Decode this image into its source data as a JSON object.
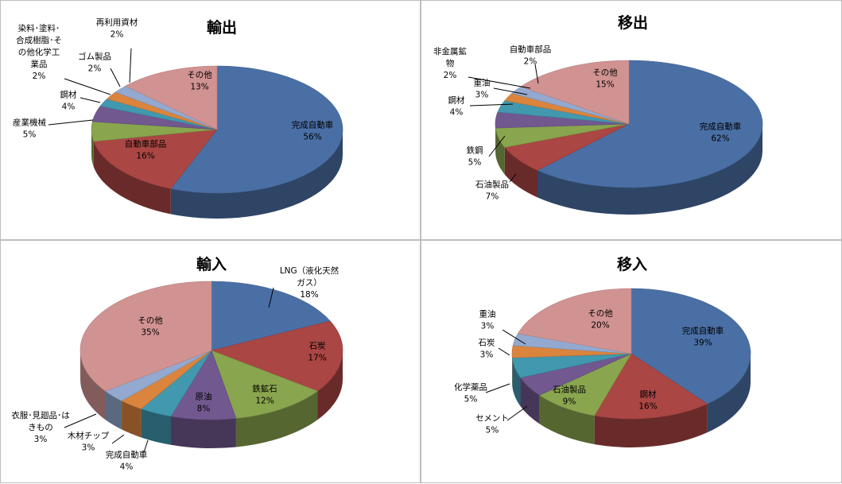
{
  "charts": [
    {
      "type": "pie",
      "title": "輸出",
      "slices": [
        {
          "label": "完成自動車",
          "value": 56,
          "pct": "56%",
          "color": "#4a6fa5"
        },
        {
          "label": "自動車部品",
          "value": 16,
          "pct": "16%",
          "color": "#aa4644"
        },
        {
          "label": "産業機械",
          "value": 5,
          "pct": "5%",
          "color": "#89a54e"
        },
        {
          "label": "鋼材",
          "value": 4,
          "pct": "4%",
          "color": "#71588f"
        },
        {
          "label": "染料･塗料･合成樹脂･その他化学工業品",
          "value": 2,
          "pct": "2%",
          "color": "#4198af"
        },
        {
          "label": "ゴム製品",
          "value": 2,
          "pct": "2%",
          "color": "#db843d"
        },
        {
          "label": "再利用資材",
          "value": 2,
          "pct": "2%",
          "color": "#93a9cf"
        },
        {
          "label": "その他",
          "value": 13,
          "pct": "13%",
          "color": "#d19392"
        }
      ]
    },
    {
      "type": "pie",
      "title": "移出",
      "slices": [
        {
          "label": "完成自動車",
          "value": 62,
          "pct": "62%",
          "color": "#4a6fa5"
        },
        {
          "label": "石油製品",
          "value": 7,
          "pct": "7%",
          "color": "#aa4644"
        },
        {
          "label": "鉄鋼",
          "value": 5,
          "pct": "5%",
          "color": "#89a54e"
        },
        {
          "label": "鋼材",
          "value": 4,
          "pct": "4%",
          "color": "#71588f"
        },
        {
          "label": "重油",
          "value": 3,
          "pct": "3%",
          "color": "#4198af"
        },
        {
          "label": "非金属鉱物",
          "value": 2,
          "pct": "2%",
          "color": "#db843d"
        },
        {
          "label": "自動車部品",
          "value": 2,
          "pct": "2%",
          "color": "#93a9cf"
        },
        {
          "label": "その他",
          "value": 15,
          "pct": "15%",
          "color": "#d19392"
        }
      ]
    },
    {
      "type": "pie",
      "title": "輸入",
      "slices": [
        {
          "label": "LNG（液化天然ガス）",
          "value": 18,
          "pct": "18%",
          "color": "#4a6fa5"
        },
        {
          "label": "石炭",
          "value": 17,
          "pct": "17%",
          "color": "#aa4644"
        },
        {
          "label": "鉄鉱石",
          "value": 12,
          "pct": "12%",
          "color": "#89a54e"
        },
        {
          "label": "原油",
          "value": 8,
          "pct": "8%",
          "color": "#71588f"
        },
        {
          "label": "完成自動車",
          "value": 4,
          "pct": "4%",
          "color": "#4198af"
        },
        {
          "label": "木材チップ",
          "value": 3,
          "pct": "3%",
          "color": "#db843d"
        },
        {
          "label": "衣服･見廻品･はきもの",
          "value": 3,
          "pct": "3%",
          "color": "#93a9cf"
        },
        {
          "label": "その他",
          "value": 35,
          "pct": "35%",
          "color": "#d19392"
        }
      ]
    },
    {
      "type": "pie",
      "title": "移入",
      "slices": [
        {
          "label": "完成自動車",
          "value": 39,
          "pct": "39%",
          "color": "#4a6fa5"
        },
        {
          "label": "鋼材",
          "value": 16,
          "pct": "16%",
          "color": "#aa4644"
        },
        {
          "label": "石油製品",
          "value": 9,
          "pct": "9%",
          "color": "#89a54e"
        },
        {
          "label": "セメント",
          "value": 5,
          "pct": "5%",
          "color": "#71588f"
        },
        {
          "label": "化学薬品",
          "value": 5,
          "pct": "5%",
          "color": "#4198af"
        },
        {
          "label": "石炭",
          "value": 3,
          "pct": "3%",
          "color": "#db843d"
        },
        {
          "label": "重油",
          "value": 3,
          "pct": "3%",
          "color": "#93a9cf"
        },
        {
          "label": "その他",
          "value": 20,
          "pct": "20%",
          "color": "#d19392"
        }
      ]
    }
  ],
  "display_labels": [
    [
      [
        [
          "完成自動車"
        ]
      ],
      [
        [
          "自動車部品"
        ]
      ],
      [
        [
          "産業機械"
        ]
      ],
      [
        [
          "鋼材"
        ]
      ],
      [
        [
          "染料･塗料･",
          "合成樹脂･そ",
          "の他化学工",
          "業品"
        ]
      ],
      [
        [
          "ゴム製品"
        ]
      ],
      [
        [
          "再利用資材"
        ]
      ],
      [
        [
          "その他"
        ]
      ]
    ],
    [
      [
        [
          "完成自動車"
        ]
      ],
      [
        [
          "石油製品"
        ]
      ],
      [
        [
          "鉄鋼"
        ]
      ],
      [
        [
          "鋼材"
        ]
      ],
      [
        [
          "重油"
        ]
      ],
      [
        [
          "非金属鉱",
          "物"
        ]
      ],
      [
        [
          "自動車部品"
        ]
      ],
      [
        [
          "その他"
        ]
      ]
    ],
    [
      [
        [
          "LNG（液化天然",
          "ガス）"
        ]
      ],
      [
        [
          "石炭"
        ]
      ],
      [
        [
          "鉄鉱石"
        ]
      ],
      [
        [
          "原油"
        ]
      ],
      [
        [
          "完成自動車"
        ]
      ],
      [
        [
          "木材チップ"
        ]
      ],
      [
        [
          "衣服･見廻品･は",
          "きもの"
        ]
      ],
      [
        [
          "その他"
        ]
      ]
    ],
    [
      [
        [
          "完成自動車"
        ]
      ],
      [
        [
          "鋼材"
        ]
      ],
      [
        [
          "石油製品"
        ]
      ],
      [
        [
          "セメント"
        ]
      ],
      [
        [
          "化学薬品"
        ]
      ],
      [
        [
          "石炭"
        ]
      ],
      [
        [
          "重油"
        ]
      ],
      [
        [
          "その他"
        ]
      ]
    ]
  ]
}
